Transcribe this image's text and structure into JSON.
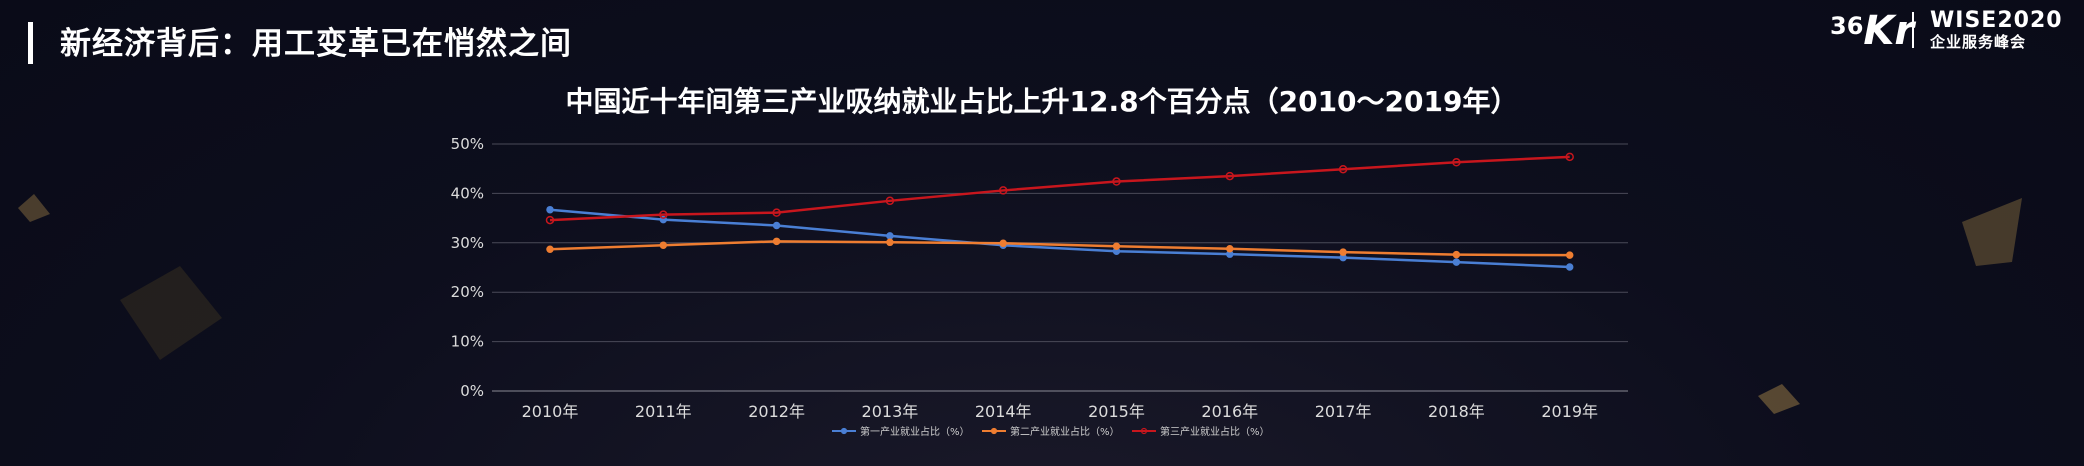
{
  "slide": {
    "title": "新经济背后：用工变革已在悄然之间"
  },
  "logo": {
    "brand_number": "36",
    "brand_letters": "Kr",
    "event_line1": "WISE2020",
    "event_line2": "企业服务峰会"
  },
  "chart_data": {
    "type": "line",
    "title": "中国近十年间第三产业吸纳就业占比上升12.8个百分点（2010～2019年）",
    "categories": [
      "2010年",
      "2011年",
      "2012年",
      "2013年",
      "2014年",
      "2015年",
      "2016年",
      "2017年",
      "2018年",
      "2019年"
    ],
    "y_ticks": [
      "0%",
      "10%",
      "20%",
      "30%",
      "40%",
      "50%"
    ],
    "ylim": [
      0,
      50
    ],
    "grid": true,
    "legend_position": "bottom",
    "series": [
      {
        "name": "第一产业就业占比（%）",
        "color": "#4a7fd4",
        "values": [
          36.7,
          34.7,
          33.5,
          31.4,
          29.5,
          28.3,
          27.7,
          27.0,
          26.1,
          25.1
        ]
      },
      {
        "name": "第二产业就业占比（%）",
        "color": "#ee7d31",
        "values": [
          28.7,
          29.5,
          30.3,
          30.1,
          29.9,
          29.3,
          28.8,
          28.1,
          27.6,
          27.5
        ]
      },
      {
        "name": "第三产业就业占比（%）",
        "color": "#c8161d",
        "values": [
          34.6,
          35.7,
          36.1,
          38.5,
          40.6,
          42.4,
          43.5,
          44.9,
          46.3,
          47.4
        ]
      }
    ]
  }
}
